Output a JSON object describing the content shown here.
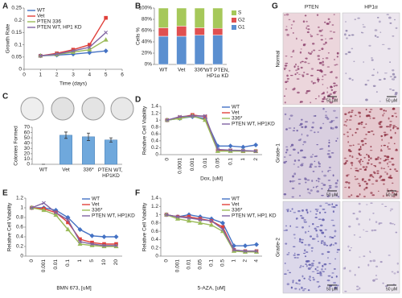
{
  "chart_data": [
    {
      "panel": "A",
      "type": "line",
      "x": [
        1,
        2,
        3,
        4,
        5
      ],
      "xlabel": "Time (days)",
      "ylabel": "Growth Rate",
      "xlim": [
        0,
        6
      ],
      "xticks": [
        0,
        1,
        2,
        3,
        4,
        5,
        6
      ],
      "ylim": [
        0,
        0.25
      ],
      "yticks": [
        0,
        0.05,
        0.1,
        0.15,
        0.2,
        0.25
      ],
      "legend": "upper left",
      "series": [
        {
          "name": "WT",
          "color": "#4472c4",
          "values": [
            0.055,
            0.058,
            0.062,
            0.068,
            0.075
          ]
        },
        {
          "name": "Vet",
          "color": "#e0403a",
          "values": [
            0.055,
            0.065,
            0.08,
            0.1,
            0.21
          ]
        },
        {
          "name": "PTEN 336",
          "color": "#9bbb59",
          "values": [
            0.055,
            0.06,
            0.07,
            0.08,
            0.12
          ]
        },
        {
          "name": "PTEN WT, HP1 KD",
          "color": "#8064a2",
          "values": [
            0.055,
            0.062,
            0.075,
            0.09,
            0.15
          ]
        }
      ]
    },
    {
      "panel": "B",
      "type": "bar",
      "stacked": true,
      "categories": [
        "WT",
        "Vet",
        "336*",
        "WT PTEN, HP1α KD"
      ],
      "ylabel": "Cells %",
      "ylim": [
        0,
        100
      ],
      "yticks": [
        {
          "value": 0,
          "label": "0%"
        },
        {
          "value": 20,
          "label": "20%"
        },
        {
          "value": 40,
          "label": "40%"
        },
        {
          "value": 60,
          "label": "60%"
        },
        {
          "value": 80,
          "label": "80%"
        },
        {
          "value": 100,
          "label": "100%"
        }
      ],
      "legend": "right",
      "series": [
        {
          "name": "G1",
          "color": "#5b8fd0",
          "values": [
            50,
            50,
            52,
            52
          ]
        },
        {
          "name": "G2",
          "color": "#e05050",
          "values": [
            15,
            18,
            13,
            12
          ]
        },
        {
          "name": "S",
          "color": "#a6c85a",
          "values": [
            35,
            32,
            35,
            36
          ]
        }
      ]
    },
    {
      "panel": "C",
      "type": "bar",
      "categories": [
        "WT",
        "Vet",
        "336*",
        "PTEN WT, HP1KD"
      ],
      "values": [
        0,
        55,
        52,
        46
      ],
      "errors": [
        0,
        6,
        7,
        4
      ],
      "color": "#6fa8dc",
      "ylabel": "Colonies Formed",
      "ylim": [
        0,
        70
      ],
      "yticks": [
        0,
        10,
        20,
        30,
        40,
        50,
        60,
        70
      ]
    },
    {
      "panel": "D",
      "type": "line",
      "categories": [
        "0",
        "0.0001",
        "0.001",
        "0.01",
        "0.05",
        "0.1",
        "1",
        "2"
      ],
      "xlabel": "Dox, [uM]",
      "ylabel": "Relative Cell Viability",
      "ylim": [
        0,
        1.4
      ],
      "yticks": [
        0,
        0.2,
        0.4,
        0.6,
        0.8,
        1,
        1.2,
        1.4
      ],
      "legend": "upper right",
      "series": [
        {
          "name": "WT",
          "color": "#4472c4",
          "values": [
            1.0,
            1.05,
            1.1,
            1.05,
            0.25,
            0.25,
            0.22,
            0.28
          ]
        },
        {
          "name": "Vet",
          "color": "#e0403a",
          "values": [
            1.0,
            1.08,
            1.15,
            1.1,
            0.12,
            0.12,
            0.1,
            0.1
          ]
        },
        {
          "name": "336*",
          "color": "#9bbb59",
          "values": [
            1.0,
            1.05,
            1.12,
            1.0,
            0.1,
            0.1,
            0.1,
            0.1
          ]
        },
        {
          "name": "PTEN WT, HP1KD",
          "color": "#8064a2",
          "values": [
            1.0,
            1.1,
            1.12,
            1.12,
            0.15,
            0.13,
            0.12,
            0.1
          ]
        }
      ]
    },
    {
      "panel": "E",
      "type": "line",
      "categories": [
        "0",
        "0.001",
        "0.01",
        "0.1",
        "1",
        "5",
        "10",
        "20"
      ],
      "xlabel": "BMN 673, [uM]",
      "ylabel": "Relative Cell Viability",
      "ylim": [
        0,
        1.2
      ],
      "yticks": [
        0,
        0.2,
        0.4,
        0.6,
        0.8,
        1,
        1.2
      ],
      "legend": "upper right",
      "series": [
        {
          "name": "WT",
          "color": "#4472c4",
          "values": [
            1.0,
            1.0,
            0.95,
            0.8,
            0.55,
            0.42,
            0.4,
            0.4
          ]
        },
        {
          "name": "Vet",
          "color": "#e0403a",
          "values": [
            1.0,
            0.98,
            0.9,
            0.7,
            0.35,
            0.28,
            0.25,
            0.25
          ]
        },
        {
          "name": "336*",
          "color": "#9bbb59",
          "values": [
            1.0,
            0.95,
            0.85,
            0.55,
            0.25,
            0.22,
            0.2,
            0.2
          ]
        },
        {
          "name": "PTEN WT, HP1KD",
          "color": "#8064a2",
          "values": [
            1.0,
            1.1,
            0.9,
            0.75,
            0.3,
            0.25,
            0.22,
            0.22
          ]
        }
      ]
    },
    {
      "panel": "F",
      "type": "line",
      "categories": [
        "0",
        "0.001",
        "0.01",
        "0.05",
        "0.1",
        "0.5",
        "1",
        "2",
        "4"
      ],
      "xlabel": "5-AZA, [uM]",
      "ylabel": "Relative Cell Viability",
      "ylim": [
        0,
        1.4
      ],
      "yticks": [
        0,
        0.2,
        0.4,
        0.6,
        0.8,
        1,
        1.2,
        1.4
      ],
      "legend": "upper right",
      "series": [
        {
          "name": "WT",
          "color": "#4472c4",
          "values": [
            1.0,
            0.95,
            1.0,
            0.95,
            0.9,
            0.8,
            0.25,
            0.25,
            0.28
          ]
        },
        {
          "name": "Vet",
          "color": "#e0403a",
          "values": [
            1.0,
            0.95,
            0.95,
            0.9,
            0.85,
            0.7,
            0.15,
            0.12,
            0.12
          ]
        },
        {
          "name": "336*",
          "color": "#9bbb59",
          "values": [
            1.0,
            0.9,
            0.85,
            0.8,
            0.75,
            0.6,
            0.12,
            0.1,
            0.1
          ]
        },
        {
          "name": "PTEN WT, HP1 KD",
          "color": "#8064a2",
          "values": [
            1.0,
            0.95,
            0.92,
            0.88,
            0.85,
            0.65,
            0.15,
            0.12,
            0.12
          ]
        }
      ]
    }
  ],
  "panel_g": {
    "panel": "G",
    "columns": [
      "PTEN",
      "HP1α"
    ],
    "rows": [
      "Normal",
      "Grade-1",
      "Grade-2"
    ],
    "scale_bar": "50 μM"
  }
}
